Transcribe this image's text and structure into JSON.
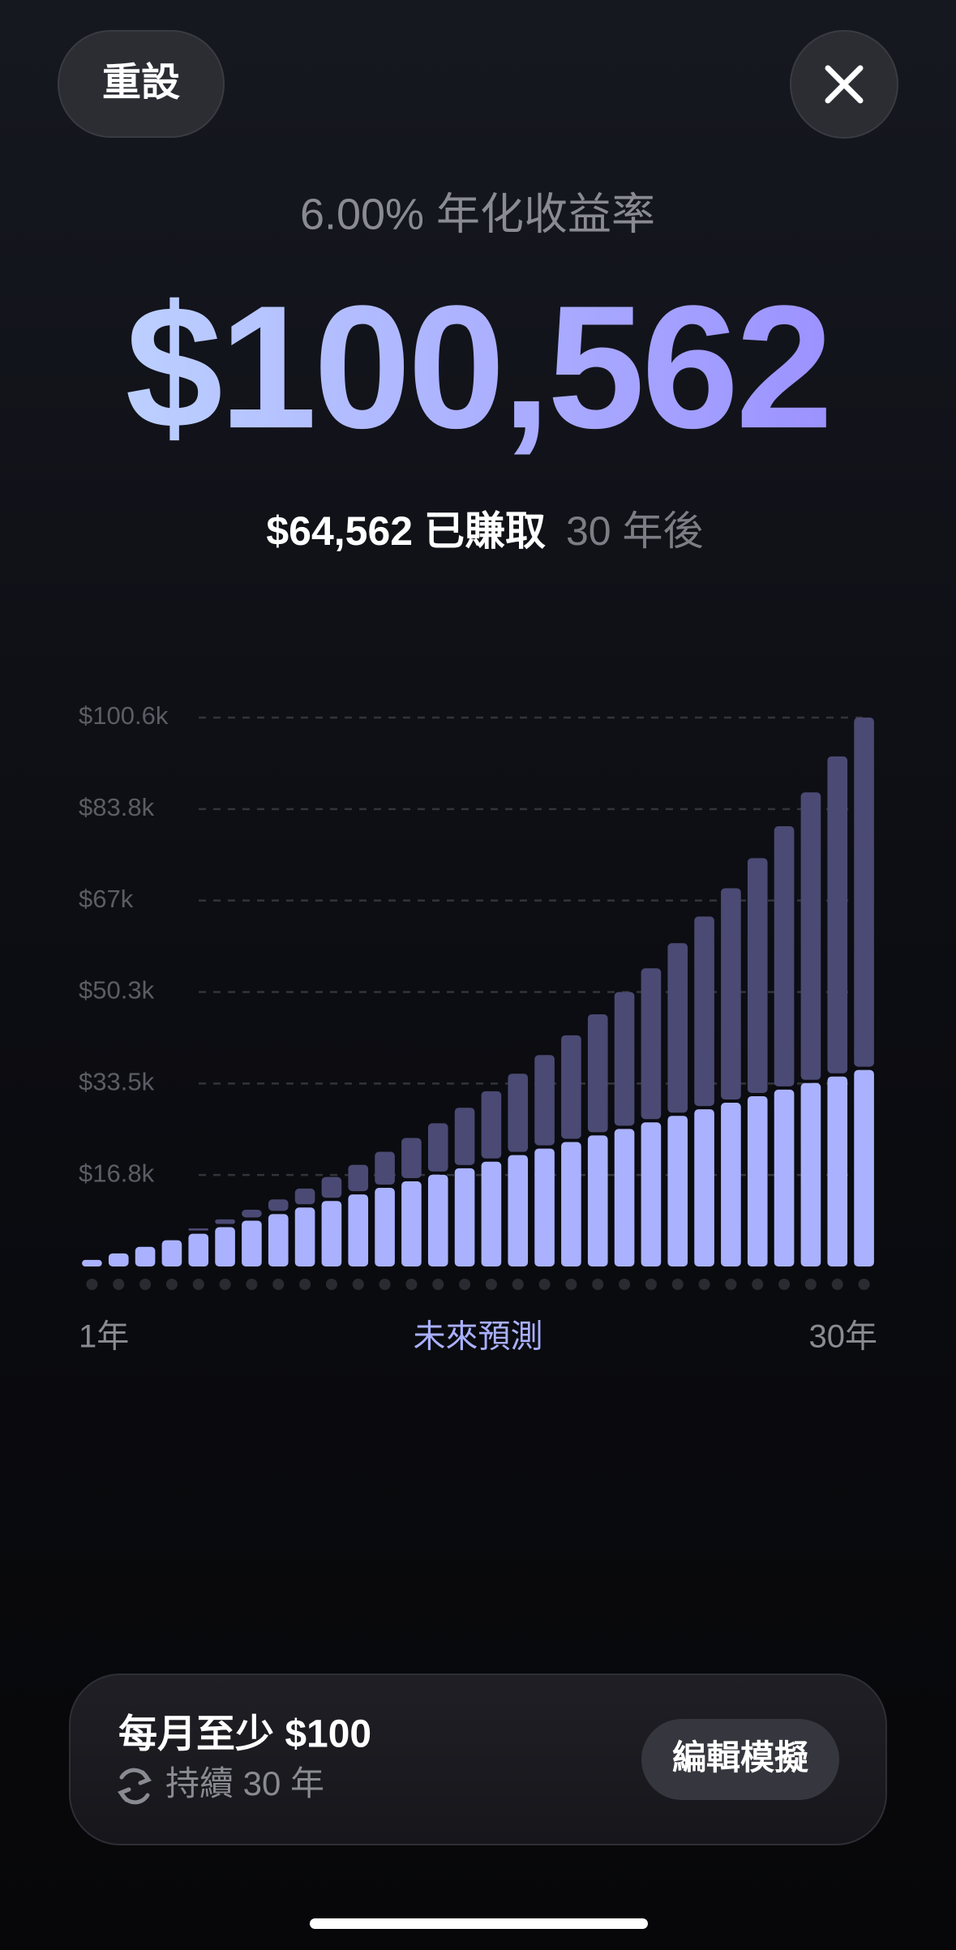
{
  "header": {
    "reset": "重設",
    "rate": "6.00% 年化收益率",
    "total": "$100,562",
    "earned": "$64,562 已賺取",
    "after": "30 年後"
  },
  "chart_data": {
    "type": "bar",
    "stacked": true,
    "categories": [
      "1年",
      null,
      null,
      null,
      null,
      null,
      null,
      null,
      null,
      null,
      null,
      null,
      null,
      null,
      null,
      null,
      null,
      null,
      null,
      null,
      null,
      null,
      null,
      null,
      null,
      null,
      null,
      null,
      null,
      "30年"
    ],
    "x_center_label": "未來預測",
    "series": [
      {
        "color": "#aab2ff",
        "values": [
          1200,
          2400,
          3600,
          4800,
          6000,
          7200,
          8400,
          9600,
          10800,
          12000,
          13200,
          14400,
          15600,
          16800,
          18000,
          19200,
          20400,
          21600,
          22800,
          24000,
          25200,
          26400,
          27600,
          28800,
          30000,
          31200,
          32400,
          33600,
          34800,
          36000
        ]
      },
      {
        "color": "#4b4a74",
        "values": [
          34,
          143,
          334,
          610,
          977,
          1441,
          2007,
          2683,
          3474,
          4388,
          5432,
          6615,
          7945,
          9431,
          11082,
          12909,
          14923,
          17135,
          19558,
          22204,
          25087,
          28222,
          31625,
          35311,
          39299,
          43607,
          48254,
          53262,
          58653,
          64562
        ]
      }
    ],
    "ylim": [
      0,
      100562
    ],
    "yticks": [
      {
        "value": 16760,
        "label": "$16.8k"
      },
      {
        "value": 33520,
        "label": "$33.5k"
      },
      {
        "value": 50280,
        "label": "$50.3k"
      },
      {
        "value": 67040,
        "label": "$67k"
      },
      {
        "value": 83800,
        "label": "$83.8k"
      },
      {
        "value": 100562,
        "label": "$100.6k"
      }
    ],
    "grid": true
  },
  "footer": {
    "plan": "每月至少 $100",
    "duration": "持續 30 年",
    "edit": "編輯模擬"
  }
}
